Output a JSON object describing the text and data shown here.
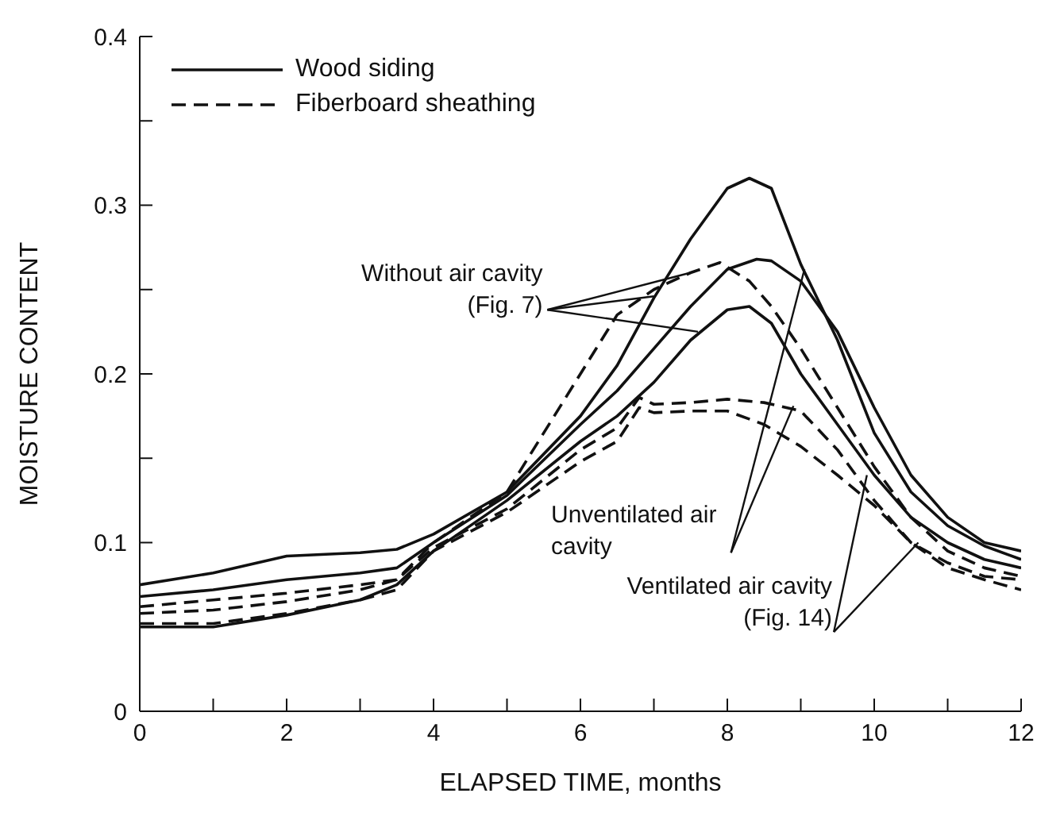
{
  "chart_data": {
    "type": "line",
    "xlabel": "ELAPSED TIME, months",
    "ylabel": "MOISTURE CONTENT",
    "xlim": [
      0,
      12
    ],
    "xticks": [
      0,
      {
        "value": 1,
        "label": null
      },
      2,
      {
        "value": 3,
        "label": null
      },
      4,
      {
        "value": 5,
        "label": null
      },
      6,
      {
        "value": 7,
        "label": null
      },
      8,
      {
        "value": 9,
        "label": null
      },
      10,
      {
        "value": 11,
        "label": null
      },
      12
    ],
    "ylim": [
      0,
      0.4
    ],
    "yticks": [
      0,
      {
        "value": 0.05,
        "label": null
      },
      0.1,
      {
        "value": 0.15,
        "label": null
      },
      0.2,
      {
        "value": 0.25,
        "label": null
      },
      0.3,
      {
        "value": 0.35,
        "label": null
      },
      0.4
    ],
    "legend": "top left",
    "marker": "none",
    "annotations": [
      {
        "text": "Without air cavity (Fig. 7)",
        "x": 7.5,
        "y": 0.26
      },
      {
        "text": "Unventilated air cavity",
        "x": 9.05,
        "y": 0.262
      },
      {
        "text": "Ventilated air cavity (Fig. 14)",
        "x": 9.9,
        "y": 0.14
      }
    ],
    "series": [
      {
        "name": "Wood siding",
        "color": "#111111",
        "line_style": "solid",
        "x": [
          0,
          1,
          2,
          3,
          3.5,
          4,
          5,
          6,
          6.5,
          7,
          7.5,
          8,
          8.3,
          8.6,
          9,
          9.5,
          10,
          10.5,
          11,
          11.5,
          12
        ],
        "values": [
          0.075,
          0.082,
          0.092,
          0.094,
          0.096,
          0.105,
          0.13,
          0.175,
          0.205,
          0.245,
          0.28,
          0.31,
          0.316,
          0.31,
          0.265,
          0.22,
          0.165,
          0.13,
          0.11,
          0.098,
          0.09
        ]
      },
      {
        "color": "#111111",
        "line_style": "solid",
        "x": [
          0,
          1,
          2,
          3,
          3.5,
          4,
          5,
          6,
          6.5,
          7,
          7.5,
          8,
          8.4,
          8.6,
          9,
          9.5,
          10,
          10.5,
          11,
          11.5,
          12
        ],
        "values": [
          0.068,
          0.072,
          0.078,
          0.082,
          0.085,
          0.1,
          0.128,
          0.17,
          0.19,
          0.215,
          0.24,
          0.262,
          0.268,
          0.267,
          0.255,
          0.225,
          0.18,
          0.14,
          0.115,
          0.1,
          0.095
        ]
      },
      {
        "color": "#111111",
        "line_style": "solid",
        "x": [
          0,
          1,
          2,
          3,
          3.5,
          4,
          5,
          6,
          6.5,
          7,
          7.5,
          8,
          8.3,
          8.6,
          9,
          9.5,
          10,
          10.5,
          11,
          11.5,
          12
        ],
        "values": [
          0.05,
          0.05,
          0.057,
          0.066,
          0.075,
          0.095,
          0.125,
          0.16,
          0.175,
          0.195,
          0.22,
          0.238,
          0.24,
          0.23,
          0.2,
          0.17,
          0.14,
          0.115,
          0.1,
          0.09,
          0.085
        ]
      },
      {
        "name": "Fiberboard sheathing",
        "color": "#111111",
        "line_style": "dashed",
        "x": [
          0,
          1,
          2,
          3,
          3.5,
          4,
          5,
          6,
          6.5,
          7,
          7.5,
          7.9,
          8.3,
          8.6,
          9,
          9.5,
          10,
          10.5,
          11,
          11.5,
          12
        ],
        "values": [
          0.062,
          0.066,
          0.07,
          0.075,
          0.078,
          0.1,
          0.13,
          0.2,
          0.235,
          0.25,
          0.26,
          0.266,
          0.255,
          0.24,
          0.215,
          0.18,
          0.145,
          0.115,
          0.095,
          0.085,
          0.08
        ]
      },
      {
        "color": "#111111",
        "line_style": "dashed",
        "x": [
          0,
          1,
          2,
          3,
          3.5,
          4,
          5,
          6,
          6.5,
          6.8,
          7,
          7.5,
          8,
          8.5,
          9,
          9.5,
          10,
          10.5,
          11,
          11.5,
          12
        ],
        "values": [
          0.058,
          0.06,
          0.065,
          0.072,
          0.078,
          0.097,
          0.12,
          0.155,
          0.168,
          0.186,
          0.182,
          0.183,
          0.185,
          0.183,
          0.178,
          0.155,
          0.125,
          0.1,
          0.088,
          0.08,
          0.078
        ]
      },
      {
        "color": "#111111",
        "line_style": "dashed",
        "x": [
          0,
          1,
          2,
          3,
          3.5,
          4,
          5,
          6,
          6.5,
          6.8,
          7,
          7.5,
          8,
          8.5,
          9,
          9.5,
          10,
          10.5,
          11,
          11.5,
          12
        ],
        "values": [
          0.052,
          0.052,
          0.058,
          0.066,
          0.072,
          0.095,
          0.118,
          0.148,
          0.16,
          0.18,
          0.177,
          0.178,
          0.178,
          0.17,
          0.157,
          0.14,
          0.122,
          0.1,
          0.085,
          0.078,
          0.072
        ]
      }
    ]
  }
}
